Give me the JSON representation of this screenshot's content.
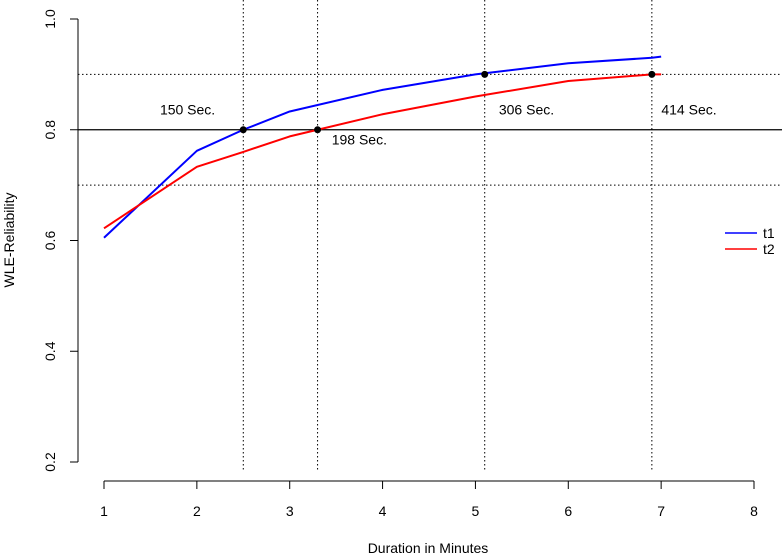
{
  "chart_data": {
    "type": "line",
    "title": "",
    "xlabel": "Duration in Minutes",
    "ylabel": "WLE-Reliability",
    "xlim": [
      1,
      8
    ],
    "ylim": [
      0.2,
      1.0
    ],
    "xticks": [
      "1",
      "2",
      "3",
      "4",
      "5",
      "6",
      "7",
      "8"
    ],
    "yticks": [
      "0.2",
      "0.4",
      "0.6",
      "0.8",
      "1.0"
    ],
    "series": [
      {
        "name": "t1",
        "color": "#0000ff",
        "x": [
          1,
          2,
          2.5,
          3,
          4,
          5,
          5.1,
          6,
          6.9,
          7
        ],
        "y": [
          0.605,
          0.762,
          0.8,
          0.833,
          0.872,
          0.9,
          0.902,
          0.92,
          0.93,
          0.932
        ]
      },
      {
        "name": "t2",
        "color": "#ff0000",
        "x": [
          1,
          2,
          2.5,
          3,
          3.3,
          4,
          5,
          6,
          6.9,
          7
        ],
        "y": [
          0.622,
          0.733,
          0.76,
          0.788,
          0.8,
          0.828,
          0.86,
          0.888,
          0.9,
          0.9
        ]
      }
    ],
    "reference_lines": {
      "horizontal_solid": [
        0.8
      ],
      "horizontal_dotted": [
        0.7,
        0.9
      ],
      "vertical_dotted": [
        2.5,
        3.3,
        5.1,
        6.9
      ]
    },
    "points": [
      {
        "x": 2.5,
        "y": 0.8
      },
      {
        "x": 3.3,
        "y": 0.8
      },
      {
        "x": 5.1,
        "y": 0.9
      },
      {
        "x": 6.9,
        "y": 0.9
      }
    ],
    "annotations": [
      {
        "text": "150 Sec.",
        "x": 1.9,
        "y": 0.837
      },
      {
        "text": "198 Sec.",
        "x": 3.75,
        "y": 0.782
      },
      {
        "text": "306 Sec.",
        "x": 5.55,
        "y": 0.837
      },
      {
        "text": "414 Sec.",
        "x": 7.3,
        "y": 0.837
      }
    ],
    "legend": {
      "position": "right",
      "entries": [
        "t1",
        "t2"
      ]
    },
    "grid": false
  }
}
